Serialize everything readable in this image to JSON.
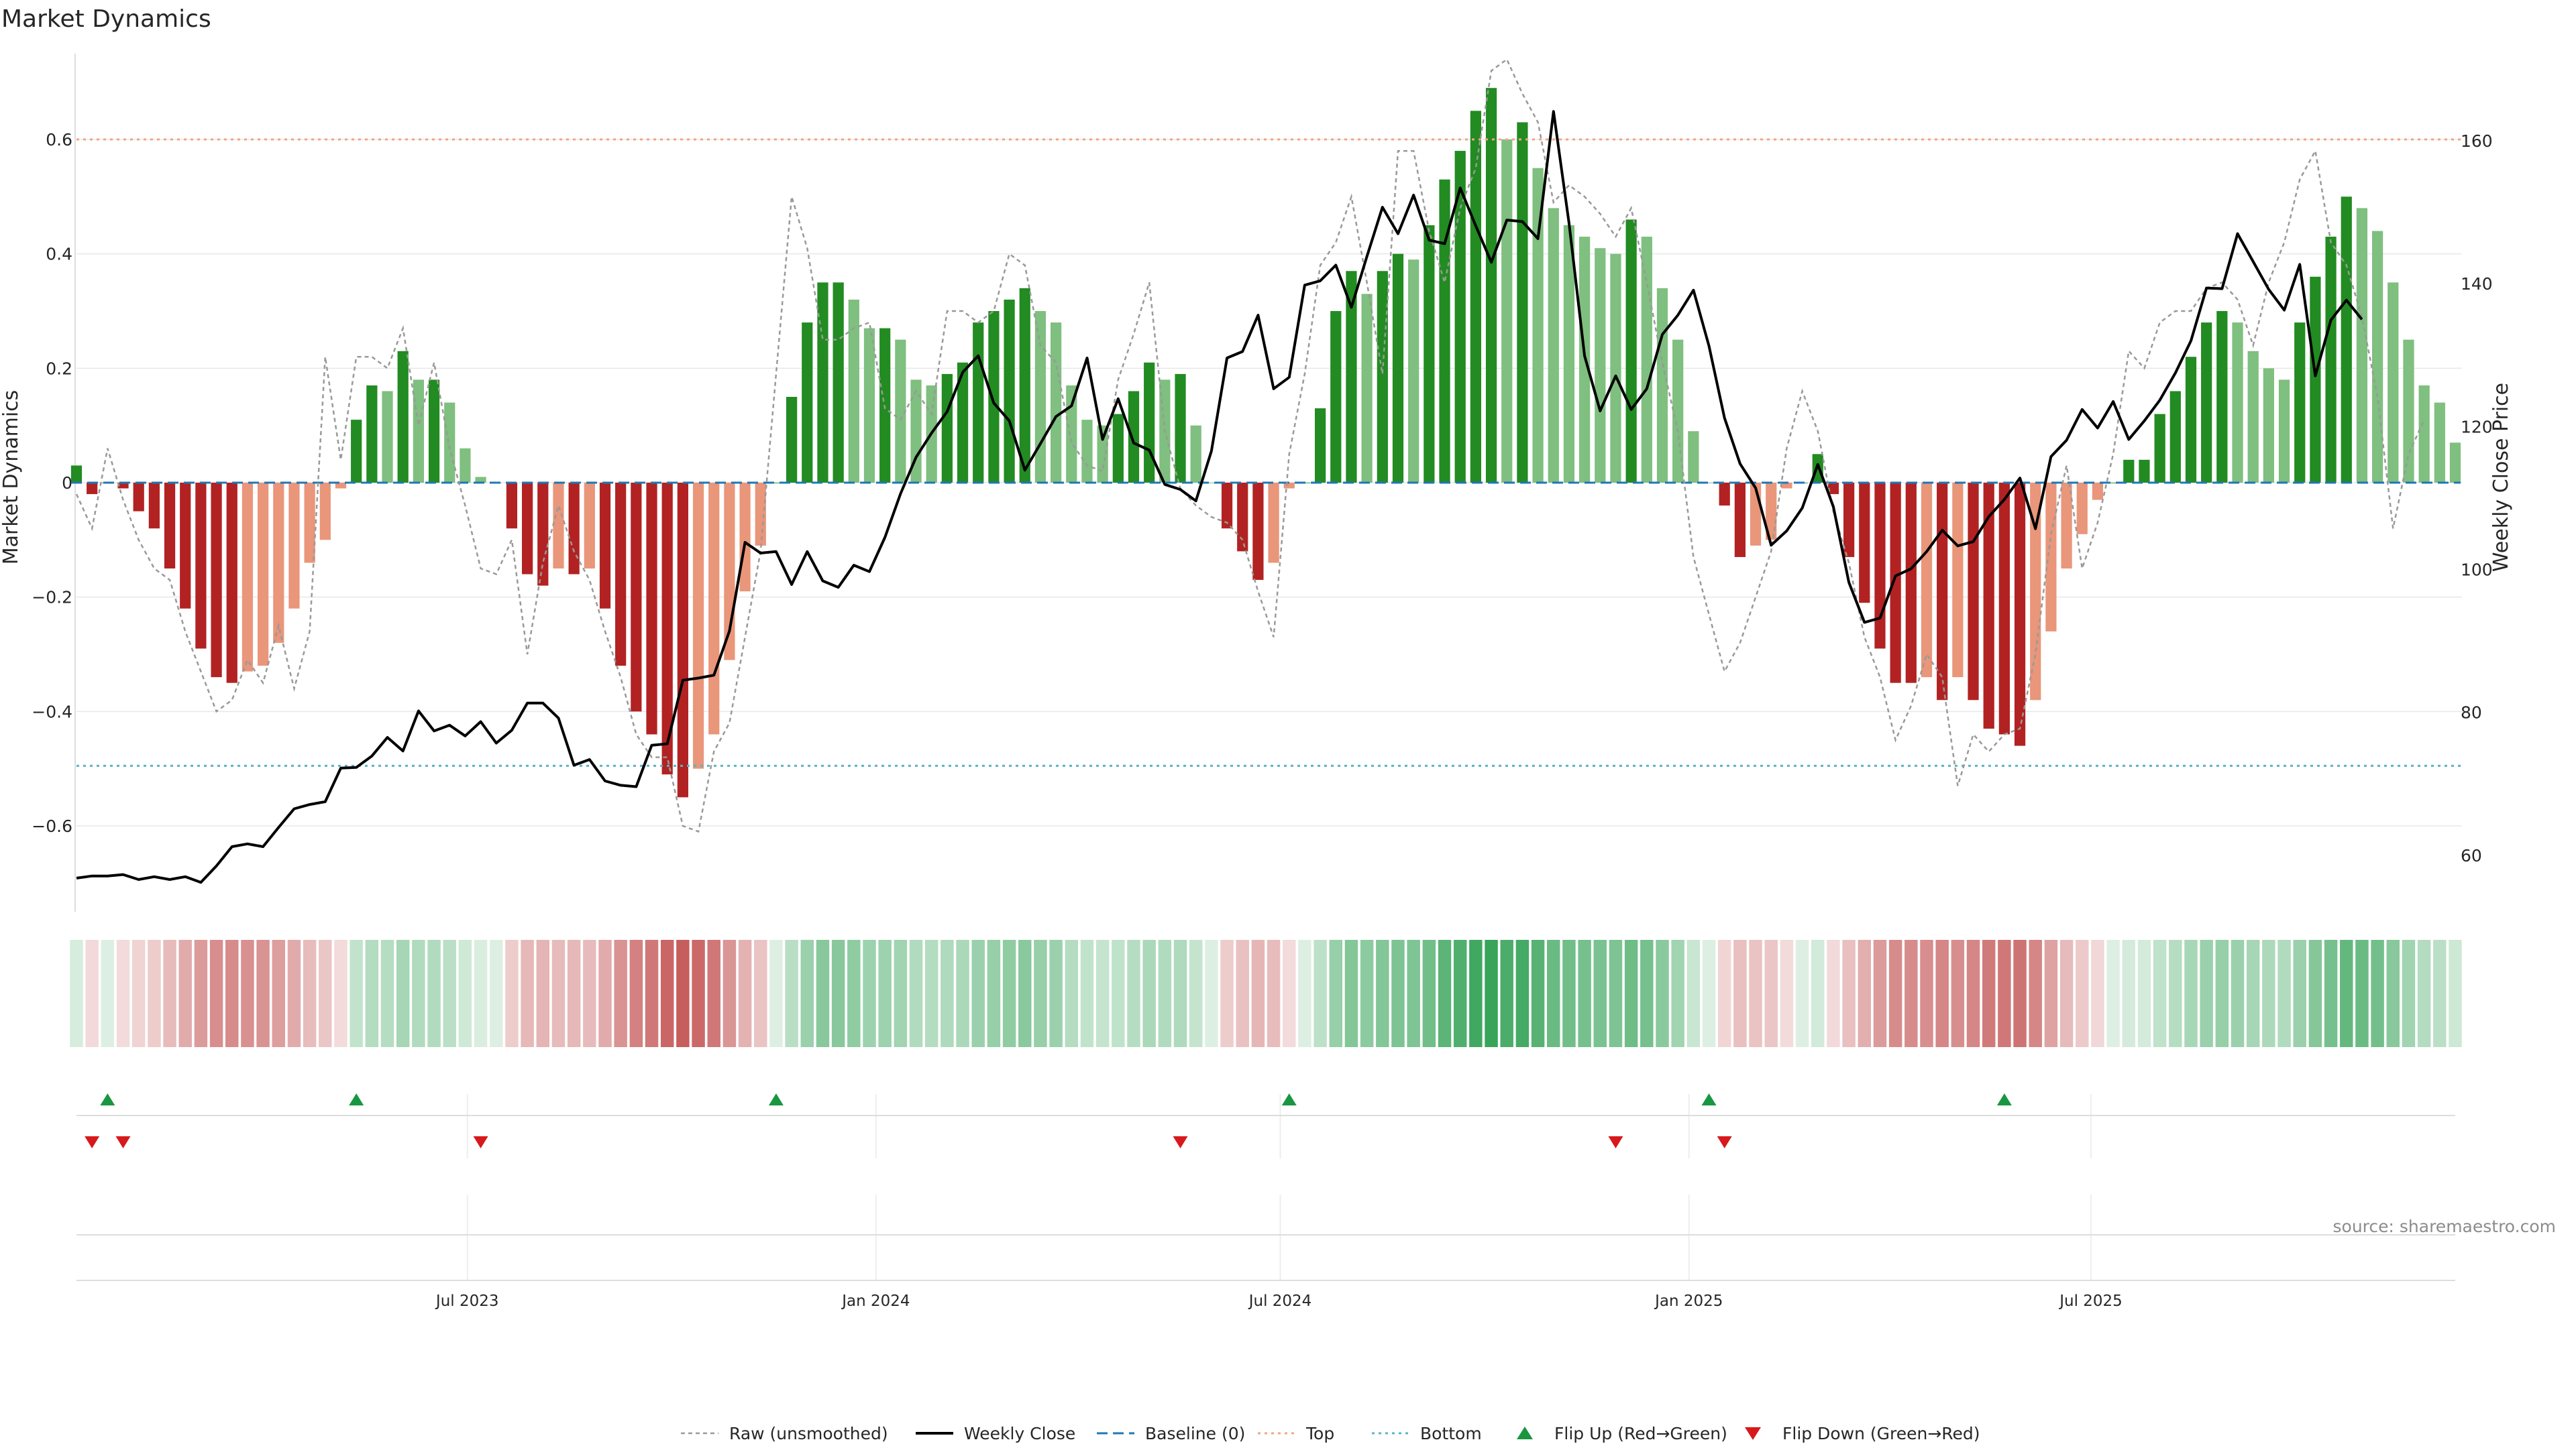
{
  "chart_data": {
    "type": "bar",
    "title": "Market Dynamics",
    "ylabel_left": "Market Dynamics",
    "ylabel_right": "Weekly Close Price",
    "y_left_ticks": [
      "0.6",
      "0.4",
      "0.2",
      "0",
      "−0.2",
      "−0.4",
      "−0.6"
    ],
    "y_left_tick_values": [
      0.6,
      0.4,
      0.2,
      0,
      -0.2,
      -0.4,
      -0.6
    ],
    "y_right_ticks": [
      "160",
      "140",
      "120",
      "100",
      "80",
      "60"
    ],
    "y_right_tick_values": [
      160,
      140,
      120,
      100,
      80,
      60
    ],
    "ylim_left": [
      -0.75,
      0.75
    ],
    "ylim_right": [
      52.1,
      172.2
    ],
    "x_ticks": [
      "Jul 2023",
      "Jan 2024",
      "Jul 2024",
      "Jan 2025",
      "Jul 2025"
    ],
    "x_tick_dates": [
      "2023-07-01",
      "2024-01-01",
      "2024-07-01",
      "2025-01-01",
      "2025-07-01"
    ],
    "x_start": "2023-01-06",
    "x_step_days": 7,
    "top_level": 0.6,
    "bottom_level": -0.495,
    "grid": true,
    "legend_position": "bottom-center",
    "source": "source: sharemaestro.com",
    "colors": {
      "strong_green": "#228B22",
      "light_green": "#7FBF7F",
      "strong_red": "#B22222",
      "light_red": "#E9967A",
      "price_line": "#000000",
      "raw_line": "#999999",
      "baseline": "#1f77b4",
      "top_line": "#f4a582",
      "bottom_line": "#5ab4c4",
      "flip_up": "#1a9641",
      "flip_down": "#d7191c"
    },
    "series": [
      {
        "name": "Market Dynamics (smoothed)",
        "values": [
          0.03,
          -0.02,
          0.0,
          -0.01,
          -0.05,
          -0.08,
          -0.15,
          -0.22,
          -0.29,
          -0.34,
          -0.35,
          -0.33,
          -0.32,
          -0.28,
          -0.22,
          -0.14,
          -0.1,
          -0.01,
          0.11,
          0.17,
          0.16,
          0.23,
          0.18,
          0.18,
          0.14,
          0.06,
          0.01,
          0.0,
          -0.08,
          -0.16,
          -0.18,
          -0.15,
          -0.16,
          -0.15,
          -0.22,
          -0.32,
          -0.4,
          -0.44,
          -0.51,
          -0.55,
          -0.5,
          -0.44,
          -0.31,
          -0.19,
          -0.11,
          0.0,
          0.15,
          0.28,
          0.35,
          0.35,
          0.32,
          0.27,
          0.27,
          0.25,
          0.18,
          0.17,
          0.19,
          0.21,
          0.28,
          0.3,
          0.32,
          0.34,
          0.3,
          0.28,
          0.17,
          0.11,
          0.1,
          0.12,
          0.16,
          0.21,
          0.18,
          0.19,
          0.1,
          0.0,
          -0.08,
          -0.12,
          -0.17,
          -0.14,
          -0.01,
          0.0,
          0.13,
          0.3,
          0.37,
          0.33,
          0.37,
          0.4,
          0.39,
          0.45,
          0.53,
          0.58,
          0.65,
          0.69,
          0.6,
          0.63,
          0.55,
          0.48,
          0.45,
          0.43,
          0.41,
          0.4,
          0.46,
          0.43,
          0.34,
          0.25,
          0.09,
          0.0,
          -0.04,
          -0.13,
          -0.11,
          -0.1,
          -0.01,
          0.0,
          0.05,
          -0.02,
          -0.13,
          -0.21,
          -0.29,
          -0.35,
          -0.35,
          -0.34,
          -0.38,
          -0.34,
          -0.38,
          -0.43,
          -0.44,
          -0.46,
          -0.38,
          -0.26,
          -0.15,
          -0.09,
          -0.03,
          0.0,
          0.04,
          0.04,
          0.12,
          0.16,
          0.22,
          0.28,
          0.3,
          0.28,
          0.23,
          0.2,
          0.18,
          0.28,
          0.36,
          0.43,
          0.5,
          0.48,
          0.44,
          0.35,
          0.25,
          0.17,
          0.14,
          0.07
        ]
      },
      {
        "name": "Raw (unsmoothed)",
        "values": [
          -0.02,
          -0.08,
          0.06,
          -0.03,
          -0.1,
          -0.15,
          -0.17,
          -0.26,
          -0.33,
          -0.4,
          -0.38,
          -0.31,
          -0.35,
          -0.25,
          -0.36,
          -0.26,
          0.22,
          0.04,
          0.22,
          0.22,
          0.2,
          0.27,
          0.1,
          0.21,
          0.06,
          -0.04,
          -0.15,
          -0.16,
          -0.1,
          -0.3,
          -0.14,
          -0.04,
          -0.12,
          -0.17,
          -0.26,
          -0.34,
          -0.44,
          -0.48,
          -0.48,
          -0.6,
          -0.61,
          -0.47,
          -0.42,
          -0.27,
          -0.12,
          0.19,
          0.5,
          0.41,
          0.25,
          0.25,
          0.27,
          0.28,
          0.13,
          0.11,
          0.16,
          0.12,
          0.3,
          0.3,
          0.28,
          0.3,
          0.4,
          0.38,
          0.24,
          0.21,
          0.07,
          0.03,
          0.02,
          0.18,
          0.26,
          0.35,
          0.09,
          -0.01,
          -0.04,
          -0.06,
          -0.07,
          -0.1,
          -0.19,
          -0.27,
          0.05,
          0.19,
          0.38,
          0.42,
          0.5,
          0.35,
          0.19,
          0.58,
          0.58,
          0.44,
          0.35,
          0.48,
          0.55,
          0.72,
          0.74,
          0.68,
          0.63,
          0.49,
          0.52,
          0.5,
          0.47,
          0.43,
          0.48,
          0.35,
          0.21,
          0.09,
          -0.13,
          -0.23,
          -0.33,
          -0.28,
          -0.2,
          -0.12,
          0.06,
          0.16,
          0.09,
          -0.05,
          -0.14,
          -0.27,
          -0.34,
          -0.45,
          -0.39,
          -0.3,
          -0.34,
          -0.53,
          -0.44,
          -0.47,
          -0.44,
          -0.43,
          -0.3,
          -0.09,
          0.03,
          -0.15,
          -0.07,
          0.05,
          0.23,
          0.2,
          0.28,
          0.3,
          0.3,
          0.34,
          0.35,
          0.32,
          0.24,
          0.35,
          0.42,
          0.53,
          0.58,
          0.42,
          0.38,
          0.29,
          0.15,
          -0.08,
          0.05,
          0.11
        ]
      },
      {
        "name": "Weekly Close",
        "values": [
          56.8,
          57.1,
          57.1,
          57.3,
          56.6,
          57,
          56.6,
          57,
          56.2,
          58.5,
          61.2,
          61.6,
          61.2,
          63.9,
          66.5,
          67.1,
          67.5,
          72.2,
          72.3,
          73.9,
          76.5,
          74.6,
          80.2,
          77.4,
          78.2,
          76.7,
          78.7,
          75.7,
          77.5,
          81.3,
          81.3,
          79.2,
          72.6,
          73.4,
          70.4,
          69.8,
          69.6,
          75.4,
          75.6,
          84.5,
          84.8,
          85.2,
          91.4,
          103.8,
          102.3,
          102.5,
          97.9,
          102.5,
          98.4,
          97.5,
          100.6,
          99.7,
          104.5,
          110.6,
          115.7,
          119.1,
          122.1,
          127.6,
          129.9,
          123.3,
          120.8,
          113.9,
          117.6,
          121.4,
          122.9,
          129.6,
          118.2,
          123.9,
          117.7,
          116.7,
          111.9,
          111.2,
          109.6,
          116.6,
          129.6,
          130.5,
          135.6,
          125.3,
          126.9,
          139.8,
          140.4,
          142.6,
          136.7,
          143.8,
          150.7,
          147,
          152.4,
          146.1,
          145.6,
          153.4,
          148.1,
          143,
          148.9,
          148.7,
          146.3,
          164.1,
          148.5,
          129.9,
          122.2,
          127.1,
          122.4,
          125.3,
          132.9,
          135.6,
          139.1,
          131.3,
          121.2,
          114.8,
          111.4,
          103.4,
          105.4,
          108.6,
          114.7,
          108.8,
          98.2,
          92.6,
          93.2,
          99.1,
          100.1,
          102.5,
          105.5,
          103.3,
          103.9,
          107.4,
          109.8,
          112.8,
          105.7,
          115.8,
          118.1,
          122.4,
          119.8,
          123.5,
          118.2,
          120.8,
          123.7,
          127.5,
          132,
          139.4,
          139.3,
          147,
          143.1,
          139.2,
          136.3,
          142.7,
          127.1,
          134.9,
          137.7,
          135
        ]
      }
    ],
    "flip_up_indices": [
      2,
      18,
      45,
      78,
      105,
      124
    ],
    "flip_down_indices": [
      1,
      3,
      26,
      71,
      99,
      106
    ],
    "legend": [
      {
        "label": "Raw (unsmoothed)",
        "marker": "dotted-gray"
      },
      {
        "label": "Weekly Close",
        "marker": "solid-black"
      },
      {
        "label": "Baseline (0)",
        "marker": "dashed-blue"
      },
      {
        "label": "Top",
        "marker": "dotted-orange"
      },
      {
        "label": "Bottom",
        "marker": "dotted-teal"
      },
      {
        "label": "Flip Up (Red→Green)",
        "marker": "triangle-up-green"
      },
      {
        "label": "Flip Down (Green→Red)",
        "marker": "triangle-down-red"
      }
    ]
  }
}
